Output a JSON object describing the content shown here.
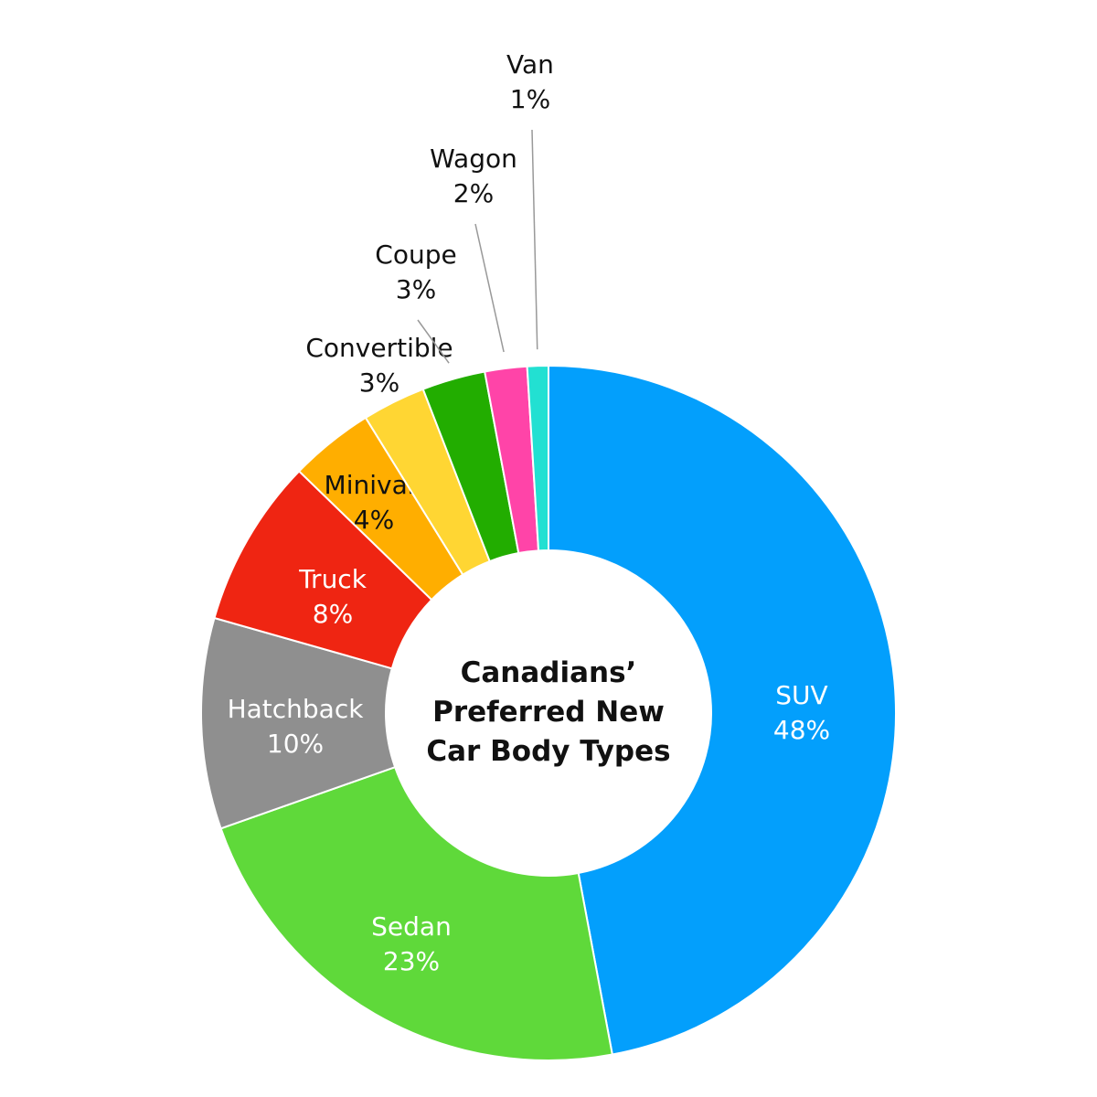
{
  "chart_data": {
    "type": "donut",
    "title": "Canadians’ Preferred New Car Body Types",
    "categories": [
      "SUV",
      "Sedan",
      "Hatchback",
      "Truck",
      "Minivan",
      "Convertible",
      "Coupe",
      "Wagon",
      "Van"
    ],
    "values": [
      48,
      23,
      10,
      8,
      4,
      3,
      3,
      2,
      1
    ],
    "value_labels": [
      "48%",
      "23%",
      "10%",
      "8%",
      "4%",
      "3%",
      "3%",
      "2%",
      "1%"
    ],
    "colors": [
      "#039ffc",
      "#5fd93a",
      "#8f8f8f",
      "#ef2512",
      "#ffae00",
      "#ffd633",
      "#22ad00",
      "#ff44a8",
      "#22e0d2"
    ]
  }
}
